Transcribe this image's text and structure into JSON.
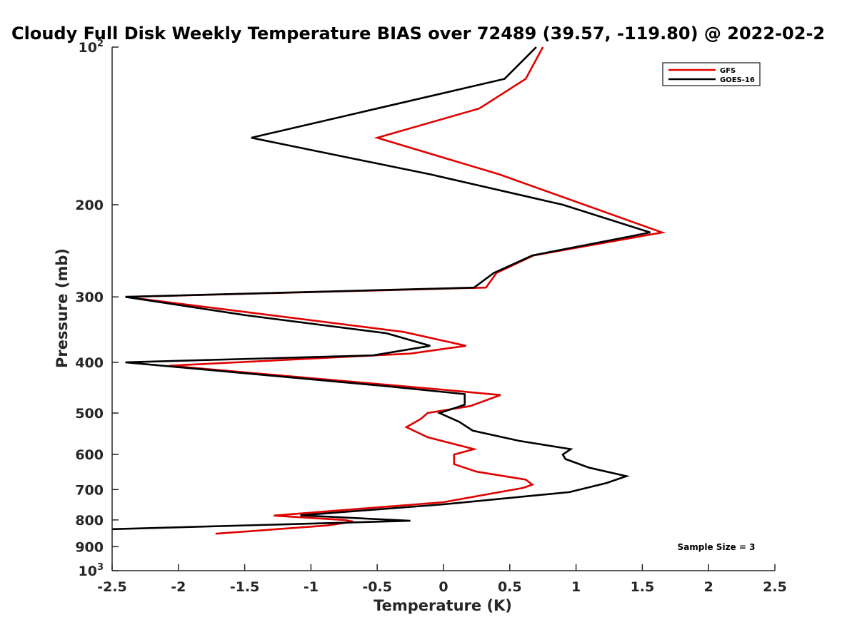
{
  "chart_data": {
    "type": "line",
    "title": "Cloudy Full Disk Weekly Temperature BIAS over 72489 (39.57, -119.80) @ 2022-02-2",
    "xlabel": "Temperature (K)",
    "ylabel": "Pressure (mb)",
    "xlim": [
      -2.5,
      2.5
    ],
    "ylim": [
      100,
      1000
    ],
    "y_scale": "log",
    "y_reversed": true,
    "grid": false,
    "legend_position": "top-right",
    "x_ticks": [
      -2.5,
      -2,
      -1.5,
      -1,
      -0.5,
      0,
      0.5,
      1,
      1.5,
      2,
      2.5
    ],
    "x_tick_labels": [
      "-2.5",
      "-2",
      "-1.5",
      "-1",
      "-0.5",
      "0",
      "0.5",
      "1",
      "1.5",
      "2",
      "2.5"
    ],
    "y_ticks": [
      200,
      300,
      400,
      500,
      600,
      700,
      800,
      900
    ],
    "y_tick_labels": [
      "200",
      "300",
      "400",
      "500",
      "600",
      "700",
      "800",
      "900"
    ],
    "y_end_labels": {
      "top_base": "10",
      "top_exp": "2",
      "bottom_base": "10",
      "bottom_exp": "3"
    },
    "annotation": "Sample Size = 3",
    "series": [
      {
        "name": "GFS",
        "color": "#e00000",
        "points": [
          [
            0.75,
            100
          ],
          [
            0.62,
            115
          ],
          [
            0.27,
            131
          ],
          [
            -0.5,
            149
          ],
          [
            0.42,
            175
          ],
          [
            1.65,
            226
          ],
          [
            0.68,
            250
          ],
          [
            0.4,
            270
          ],
          [
            0.32,
            288
          ],
          [
            -2.4,
            300
          ],
          [
            -0.3,
            350
          ],
          [
            0.17,
            372
          ],
          [
            -0.25,
            385
          ],
          [
            -2.07,
            406
          ],
          [
            -0.05,
            450
          ],
          [
            0.43,
            462
          ],
          [
            0.2,
            485
          ],
          [
            -0.12,
            500
          ],
          [
            -0.17,
            513
          ],
          [
            -0.28,
            532
          ],
          [
            -0.12,
            556
          ],
          [
            0.23,
            586
          ],
          [
            0.08,
            600
          ],
          [
            0.08,
            626
          ],
          [
            0.25,
            647
          ],
          [
            0.62,
            670
          ],
          [
            0.67,
            685
          ],
          [
            0.6,
            695
          ],
          [
            0.0,
            740
          ],
          [
            -1.28,
            785
          ],
          [
            -0.75,
            800
          ],
          [
            -0.68,
            806
          ],
          [
            -0.88,
            820
          ],
          [
            -1.72,
            850
          ]
        ]
      },
      {
        "name": "GOES-16",
        "color": "#000000",
        "points": [
          [
            0.7,
            100
          ],
          [
            0.46,
            115
          ],
          [
            -1.45,
            149
          ],
          [
            -0.1,
            175
          ],
          [
            0.9,
            200
          ],
          [
            1.56,
            226
          ],
          [
            0.67,
            250
          ],
          [
            0.38,
            270
          ],
          [
            0.23,
            288
          ],
          [
            -2.4,
            300
          ],
          [
            -1.5,
            325
          ],
          [
            -0.43,
            352
          ],
          [
            -0.1,
            372
          ],
          [
            -0.53,
            388
          ],
          [
            -2.4,
            400
          ],
          [
            -0.4,
            445
          ],
          [
            0.16,
            460
          ],
          [
            0.16,
            482
          ],
          [
            -0.03,
            500
          ],
          [
            0.12,
            520
          ],
          [
            0.22,
            540
          ],
          [
            0.57,
            565
          ],
          [
            0.96,
            586
          ],
          [
            0.9,
            600
          ],
          [
            0.92,
            612
          ],
          [
            1.1,
            636
          ],
          [
            1.38,
            660
          ],
          [
            1.23,
            680
          ],
          [
            0.95,
            708
          ],
          [
            0.0,
            747
          ],
          [
            -1.08,
            784
          ],
          [
            -0.25,
            803
          ],
          [
            -2.5,
            833
          ]
        ]
      }
    ]
  }
}
